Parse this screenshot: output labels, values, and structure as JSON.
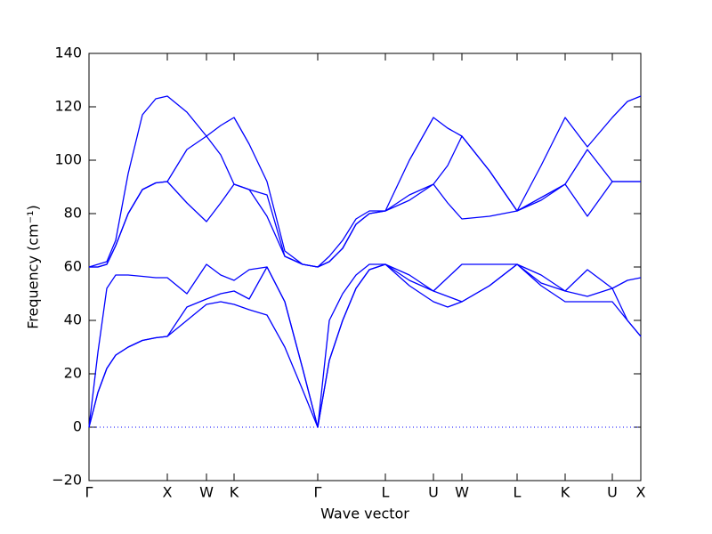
{
  "chart_data": {
    "type": "line",
    "xlabel": "Wave vector",
    "ylabel": "Frequency (cm⁻¹)",
    "x": [
      0,
      0.1,
      0.2,
      0.3,
      0.44,
      0.6,
      0.75,
      0.88,
      1.1,
      1.32,
      1.48,
      1.63,
      1.8,
      2.0,
      2.2,
      2.4,
      2.57,
      2.7,
      2.85,
      3.0,
      3.15,
      3.33,
      3.6,
      3.87,
      4.03,
      4.19,
      4.5,
      4.81,
      5.08,
      5.35,
      5.6,
      5.88,
      6.05,
      6.2
    ],
    "series": [
      {
        "color": "#0000ff",
        "values": [
          0,
          13,
          22,
          27,
          30,
          32.5,
          33.5,
          34,
          40,
          46,
          47,
          46,
          44,
          42,
          30,
          14,
          0,
          25,
          40,
          52,
          59,
          61,
          53,
          47,
          45,
          47,
          53,
          61,
          53,
          47,
          47,
          47,
          40,
          34
        ]
      },
      {
        "color": "#0000ff",
        "values": [
          0,
          13,
          22,
          27,
          30,
          32.5,
          33.5,
          34,
          45,
          48,
          50,
          51,
          48,
          60,
          47,
          22,
          0,
          25,
          40,
          52,
          59,
          61,
          55,
          51,
          49,
          47,
          53,
          61,
          54,
          51,
          49,
          52,
          40,
          34
        ]
      },
      {
        "color": "#0000ff",
        "values": [
          0,
          28,
          52,
          57,
          57,
          56.5,
          56,
          56,
          50,
          61,
          57,
          55,
          59,
          60,
          47,
          22,
          0,
          40,
          50,
          57,
          61,
          61,
          57,
          51,
          56,
          61,
          61,
          61,
          57,
          51,
          59,
          52,
          55,
          56
        ]
      },
      {
        "color": "#0000ff",
        "values": [
          60,
          60,
          61,
          68,
          80,
          89,
          91.5,
          92,
          84,
          77,
          84,
          91,
          89,
          79,
          64,
          61,
          60,
          62,
          67,
          76,
          80,
          81,
          85,
          91,
          84,
          78,
          79,
          81,
          85,
          91,
          79,
          92,
          92,
          92
        ]
      },
      {
        "color": "#0000ff",
        "values": [
          60,
          60,
          61,
          68,
          80,
          89,
          91.5,
          92,
          104,
          109,
          102,
          91,
          89,
          87,
          64,
          61,
          60,
          62,
          67,
          76,
          80,
          81,
          87,
          91,
          98,
          109,
          96,
          81,
          86,
          91,
          104,
          92,
          92,
          92
        ]
      },
      {
        "color": "#0000ff",
        "values": [
          60,
          61,
          62,
          70,
          95,
          117,
          123,
          124,
          118,
          109,
          113,
          116,
          106,
          92,
          66,
          61,
          60,
          64,
          70,
          78,
          81,
          81,
          100,
          116,
          112,
          109,
          96,
          81,
          98,
          116,
          105,
          116,
          122,
          124
        ]
      }
    ],
    "hlines": [
      0
    ],
    "hline_color": "#0000ff",
    "xlim": [
      0,
      6.2
    ],
    "xticks": [
      {
        "value": 0,
        "label": "Γ"
      },
      {
        "value": 0.88,
        "label": "X"
      },
      {
        "value": 1.32,
        "label": "W"
      },
      {
        "value": 1.63,
        "label": "K"
      },
      {
        "value": 2.57,
        "label": "Γ"
      },
      {
        "value": 3.33,
        "label": "L"
      },
      {
        "value": 3.87,
        "label": "U"
      },
      {
        "value": 4.19,
        "label": "W"
      },
      {
        "value": 4.81,
        "label": "L"
      },
      {
        "value": 5.35,
        "label": "K"
      },
      {
        "value": 5.88,
        "label": "U"
      },
      {
        "value": 6.2,
        "label": "X"
      }
    ],
    "ylim": [
      -20,
      140
    ],
    "yticks": [
      {
        "value": -20,
        "label": "−20"
      },
      0,
      20,
      40,
      60,
      80,
      100,
      120,
      140
    ],
    "grid": false
  }
}
